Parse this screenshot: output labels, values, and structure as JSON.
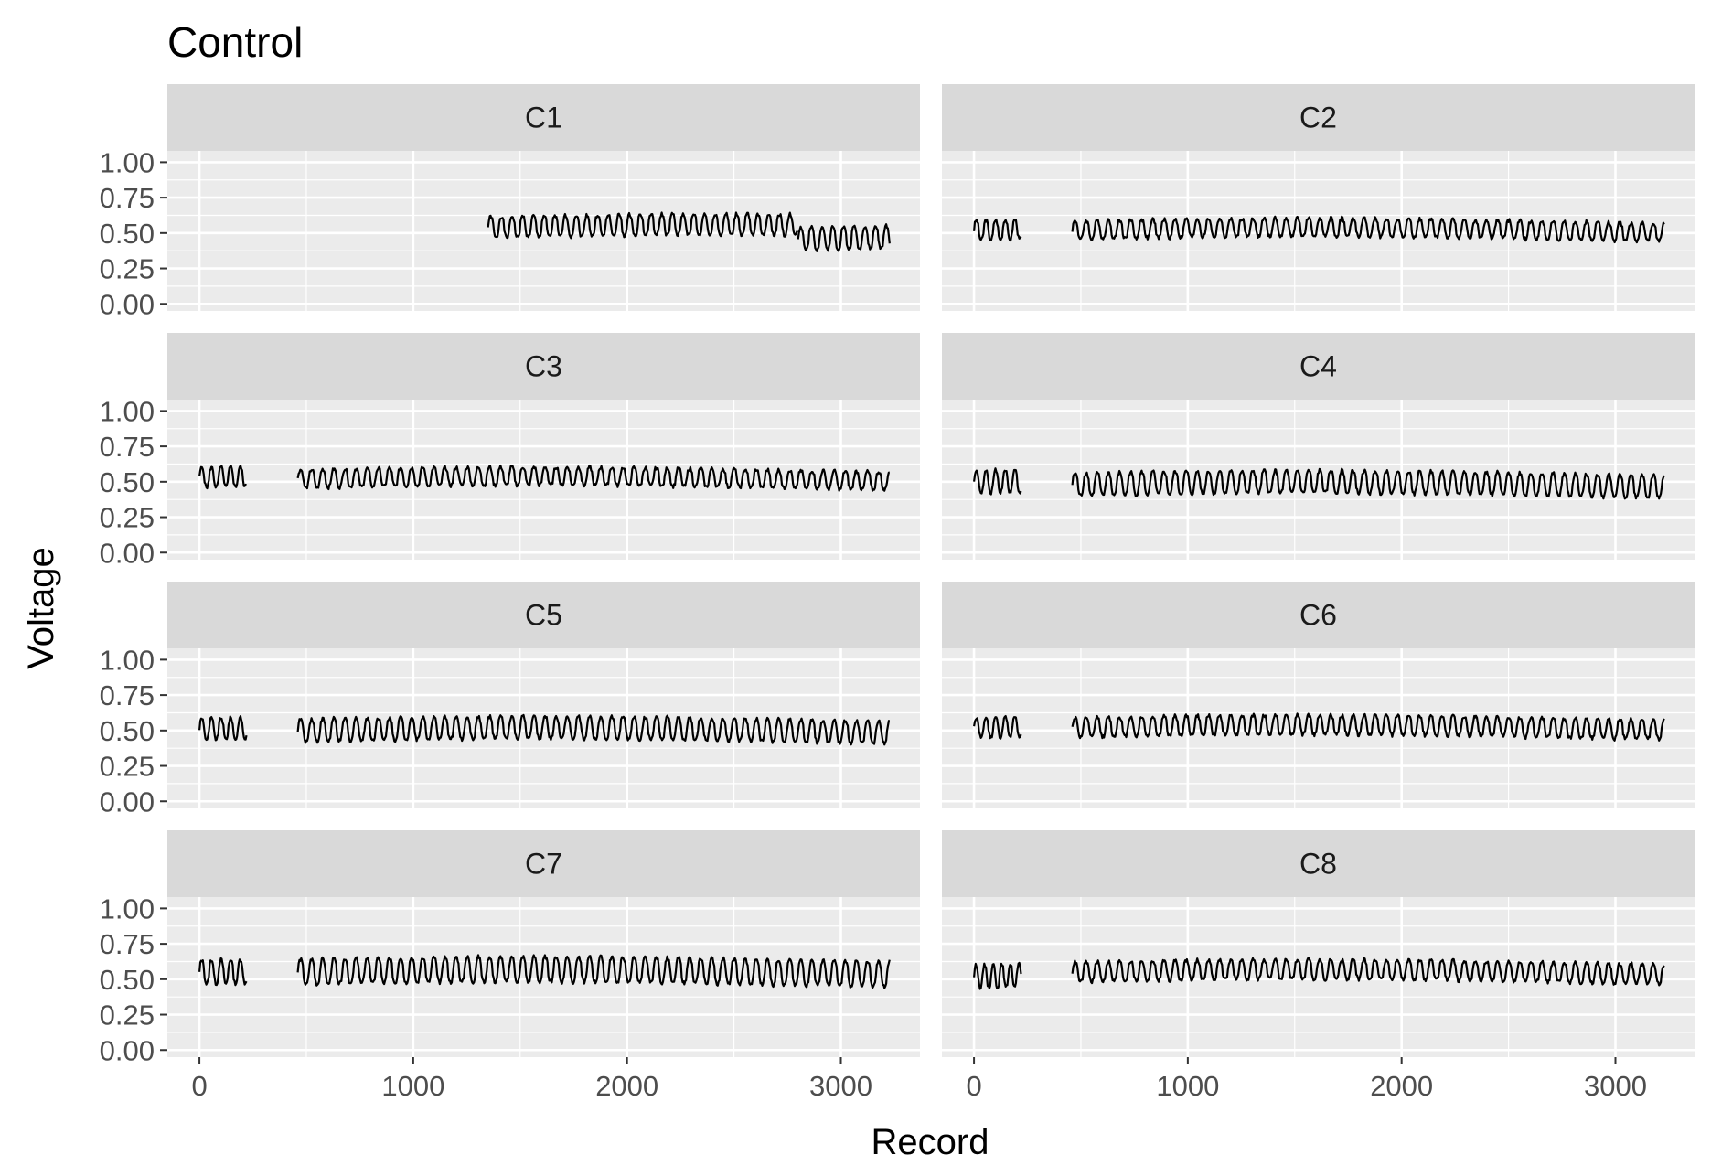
{
  "chart_data": {
    "type": "line",
    "title": "Control",
    "xlabel": "Record",
    "ylabel": "Voltage",
    "xlim": [
      -150,
      3370
    ],
    "ylim": [
      -0.05,
      1.08
    ],
    "x_ticks": [
      0,
      1000,
      2000,
      3000
    ],
    "x_tick_labels": [
      "0",
      "1000",
      "2000",
      "3000"
    ],
    "y_ticks": [
      0,
      0.25,
      0.5,
      0.75,
      1.0
    ],
    "y_tick_labels": [
      "0.00",
      "0.25",
      "0.50",
      "0.75",
      "1.00"
    ],
    "grid": true,
    "line_color": "#000000",
    "panel_background": "#ebebeb",
    "strip_background": "#d9d9d9",
    "panels": [
      {
        "label": "C1",
        "segments": [
          {
            "x_start": 1350,
            "x_end": 2800,
            "mean": 0.54,
            "amp": 0.075,
            "period": 50,
            "seed": 1
          },
          {
            "x_start": 2800,
            "x_end": 3230,
            "mean": 0.46,
            "amp": 0.08,
            "period": 50,
            "seed": 2
          }
        ]
      },
      {
        "label": "C2",
        "segments": [
          {
            "x_start": 0,
            "x_end": 220,
            "mean": 0.52,
            "amp": 0.07,
            "period": 45,
            "seed": 3
          },
          {
            "x_start": 460,
            "x_end": 3230,
            "mean": 0.52,
            "amp": 0.065,
            "period": 52,
            "seed": 4
          }
        ]
      },
      {
        "label": "C3",
        "segments": [
          {
            "x_start": 0,
            "x_end": 220,
            "mean": 0.53,
            "amp": 0.07,
            "period": 45,
            "seed": 5
          },
          {
            "x_start": 460,
            "x_end": 3230,
            "mean": 0.52,
            "amp": 0.065,
            "period": 52,
            "seed": 6
          }
        ]
      },
      {
        "label": "C4",
        "segments": [
          {
            "x_start": 0,
            "x_end": 220,
            "mean": 0.5,
            "amp": 0.08,
            "period": 45,
            "seed": 7
          },
          {
            "x_start": 460,
            "x_end": 3230,
            "mean": 0.48,
            "amp": 0.08,
            "period": 52,
            "seed": 8
          }
        ]
      },
      {
        "label": "C5",
        "segments": [
          {
            "x_start": 0,
            "x_end": 220,
            "mean": 0.51,
            "amp": 0.075,
            "period": 45,
            "seed": 9
          },
          {
            "x_start": 460,
            "x_end": 3230,
            "mean": 0.5,
            "amp": 0.08,
            "period": 52,
            "seed": 10
          }
        ]
      },
      {
        "label": "C6",
        "segments": [
          {
            "x_start": 0,
            "x_end": 220,
            "mean": 0.52,
            "amp": 0.07,
            "period": 45,
            "seed": 11
          },
          {
            "x_start": 460,
            "x_end": 3230,
            "mean": 0.52,
            "amp": 0.07,
            "period": 52,
            "seed": 12
          }
        ]
      },
      {
        "label": "C7",
        "segments": [
          {
            "x_start": 0,
            "x_end": 220,
            "mean": 0.55,
            "amp": 0.085,
            "period": 45,
            "seed": 13
          },
          {
            "x_start": 460,
            "x_end": 3230,
            "mean": 0.55,
            "amp": 0.09,
            "period": 52,
            "seed": 14
          }
        ]
      },
      {
        "label": "C8",
        "segments": [
          {
            "x_start": 0,
            "x_end": 220,
            "mean": 0.52,
            "amp": 0.08,
            "period": 40,
            "seed": 15
          },
          {
            "x_start": 460,
            "x_end": 3230,
            "mean": 0.55,
            "amp": 0.07,
            "period": 52,
            "seed": 16
          }
        ]
      }
    ]
  }
}
